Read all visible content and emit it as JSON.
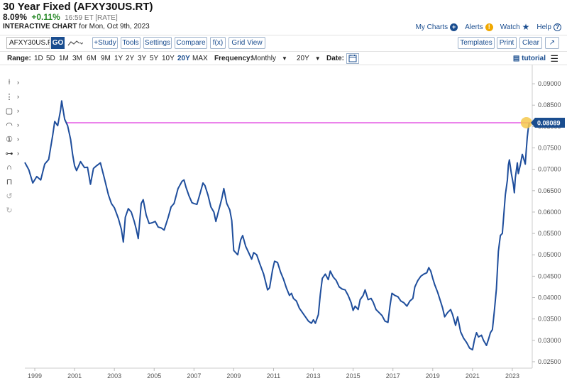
{
  "header": {
    "title": "30 Year Fixed (AFXY30US.RT)",
    "price": "8.09%",
    "change": "+0.11%",
    "timestamp": "16:59 ET [RATE]",
    "subtitle_bold": "INTERACTIVE CHART",
    "subtitle_rest": " for Mon, Oct 9th, 2023"
  },
  "toplinks": {
    "my_charts": "My Charts",
    "alerts": "Alerts",
    "watch": "Watch",
    "help": "Help"
  },
  "toolbar": {
    "symbol_value": "AFXY30US.R",
    "go_label": "GO",
    "study_label": "+Study",
    "tools_label": "Tools",
    "settings_label": "Settings",
    "compare_label": "Compare",
    "fx_label": "f(x)",
    "grid_view_label": "Grid View",
    "templates_label": "Templates",
    "print_label": "Print",
    "clear_label": "Clear",
    "expand_label": "↗"
  },
  "range_bar": {
    "range_label": "Range:",
    "ranges": [
      "1D",
      "5D",
      "1M",
      "3M",
      "6M",
      "9M",
      "1Y",
      "2Y",
      "3Y",
      "5Y",
      "10Y",
      "20Y",
      "MAX"
    ],
    "active_range": "20Y",
    "frequency_label": "Frequency:",
    "frequency_value": "Monthly",
    "period_value": "20Y",
    "date_label": "Date:",
    "tutorial_label": "tutorial"
  },
  "colors": {
    "line": "#1f4e9c",
    "reference_line": "#e040e0",
    "accent": "#1a4d8f",
    "marker": "#f5c84c"
  },
  "chart_data": {
    "type": "line",
    "title": "30 Year Fixed (AFXY30US.RT)",
    "xlabel": "",
    "ylabel": "",
    "xlim": [
      1998.5,
      2024.0
    ],
    "ylim": [
      0.0235,
      0.0935
    ],
    "x_ticks": [
      "1999",
      "2001",
      "2003",
      "2005",
      "2007",
      "2009",
      "2011",
      "2013",
      "2015",
      "2017",
      "2019",
      "2021",
      "2023"
    ],
    "y_ticks": [
      "0.02500",
      "0.03000",
      "0.03500",
      "0.04000",
      "0.04500",
      "0.05000",
      "0.05500",
      "0.06000",
      "0.06500",
      "0.07000",
      "0.07500",
      "0.08000",
      "0.08500",
      "0.09000"
    ],
    "reference_line": 0.08089,
    "last_value_label": "0.08089",
    "grid": false,
    "series": [
      {
        "values": [
          [
            1998.5,
            0.0716
          ],
          [
            1998.7,
            0.0699
          ],
          [
            1998.9,
            0.0668
          ],
          [
            1999.1,
            0.0683
          ],
          [
            1999.3,
            0.0675
          ],
          [
            1999.5,
            0.0712
          ],
          [
            1999.7,
            0.0723
          ],
          [
            1999.9,
            0.078
          ],
          [
            2000.0,
            0.0812
          ],
          [
            2000.15,
            0.0802
          ],
          [
            2000.3,
            0.084
          ],
          [
            2000.35,
            0.086
          ],
          [
            2000.5,
            0.0817
          ],
          [
            2000.65,
            0.0802
          ],
          [
            2000.8,
            0.077
          ],
          [
            2000.9,
            0.0735
          ],
          [
            2001.0,
            0.0708
          ],
          [
            2001.1,
            0.0697
          ],
          [
            2001.3,
            0.0718
          ],
          [
            2001.5,
            0.0704
          ],
          [
            2001.65,
            0.0705
          ],
          [
            2001.8,
            0.0665
          ],
          [
            2001.95,
            0.0702
          ],
          [
            2002.1,
            0.0708
          ],
          [
            2002.3,
            0.0715
          ],
          [
            2002.5,
            0.0678
          ],
          [
            2002.7,
            0.064
          ],
          [
            2002.85,
            0.062
          ],
          [
            2003.0,
            0.061
          ],
          [
            2003.2,
            0.0585
          ],
          [
            2003.35,
            0.056
          ],
          [
            2003.45,
            0.053
          ],
          [
            2003.55,
            0.0588
          ],
          [
            2003.7,
            0.0608
          ],
          [
            2003.85,
            0.06
          ],
          [
            2004.0,
            0.0578
          ],
          [
            2004.1,
            0.056
          ],
          [
            2004.2,
            0.0538
          ],
          [
            2004.35,
            0.062
          ],
          [
            2004.45,
            0.0629
          ],
          [
            2004.6,
            0.0593
          ],
          [
            2004.75,
            0.0573
          ],
          [
            2004.9,
            0.0575
          ],
          [
            2005.05,
            0.0578
          ],
          [
            2005.2,
            0.0565
          ],
          [
            2005.35,
            0.0563
          ],
          [
            2005.5,
            0.0558
          ],
          [
            2005.7,
            0.0587
          ],
          [
            2005.85,
            0.0612
          ],
          [
            2006.0,
            0.062
          ],
          [
            2006.2,
            0.0655
          ],
          [
            2006.4,
            0.0672
          ],
          [
            2006.5,
            0.0675
          ],
          [
            2006.6,
            0.0658
          ],
          [
            2006.75,
            0.0638
          ],
          [
            2006.9,
            0.0622
          ],
          [
            2007.0,
            0.062
          ],
          [
            2007.15,
            0.0618
          ],
          [
            2007.3,
            0.0642
          ],
          [
            2007.45,
            0.0668
          ],
          [
            2007.55,
            0.0662
          ],
          [
            2007.7,
            0.064
          ],
          [
            2007.85,
            0.0612
          ],
          [
            2008.0,
            0.06
          ],
          [
            2008.1,
            0.0578
          ],
          [
            2008.25,
            0.0605
          ],
          [
            2008.4,
            0.0632
          ],
          [
            2008.5,
            0.0655
          ],
          [
            2008.65,
            0.062
          ],
          [
            2008.8,
            0.0605
          ],
          [
            2008.9,
            0.058
          ],
          [
            2009.0,
            0.051
          ],
          [
            2009.1,
            0.0505
          ],
          [
            2009.2,
            0.05
          ],
          [
            2009.35,
            0.0535
          ],
          [
            2009.45,
            0.0545
          ],
          [
            2009.6,
            0.052
          ],
          [
            2009.75,
            0.0505
          ],
          [
            2009.9,
            0.049
          ],
          [
            2010.0,
            0.0505
          ],
          [
            2010.15,
            0.05
          ],
          [
            2010.3,
            0.048
          ],
          [
            2010.5,
            0.0455
          ],
          [
            2010.7,
            0.0418
          ],
          [
            2010.8,
            0.0423
          ],
          [
            2010.95,
            0.0465
          ],
          [
            2011.05,
            0.0485
          ],
          [
            2011.2,
            0.0482
          ],
          [
            2011.35,
            0.046
          ],
          [
            2011.5,
            0.0443
          ],
          [
            2011.65,
            0.0422
          ],
          [
            2011.8,
            0.0405
          ],
          [
            2011.9,
            0.041
          ],
          [
            2012.0,
            0.0398
          ],
          [
            2012.15,
            0.0392
          ],
          [
            2012.3,
            0.0375
          ],
          [
            2012.45,
            0.0365
          ],
          [
            2012.6,
            0.0355
          ],
          [
            2012.75,
            0.0345
          ],
          [
            2012.9,
            0.034
          ],
          [
            2013.0,
            0.0348
          ],
          [
            2013.1,
            0.034
          ],
          [
            2013.25,
            0.036
          ],
          [
            2013.35,
            0.0408
          ],
          [
            2013.45,
            0.0445
          ],
          [
            2013.6,
            0.0455
          ],
          [
            2013.75,
            0.0442
          ],
          [
            2013.85,
            0.0462
          ],
          [
            2014.0,
            0.0448
          ],
          [
            2014.15,
            0.044
          ],
          [
            2014.3,
            0.0425
          ],
          [
            2014.45,
            0.042
          ],
          [
            2014.6,
            0.0418
          ],
          [
            2014.75,
            0.0405
          ],
          [
            2014.9,
            0.0388
          ],
          [
            2015.0,
            0.037
          ],
          [
            2015.1,
            0.038
          ],
          [
            2015.25,
            0.0372
          ],
          [
            2015.35,
            0.0395
          ],
          [
            2015.5,
            0.0405
          ],
          [
            2015.6,
            0.0418
          ],
          [
            2015.75,
            0.0395
          ],
          [
            2015.9,
            0.0398
          ],
          [
            2016.0,
            0.039
          ],
          [
            2016.15,
            0.0372
          ],
          [
            2016.3,
            0.0365
          ],
          [
            2016.45,
            0.0358
          ],
          [
            2016.6,
            0.0345
          ],
          [
            2016.75,
            0.0342
          ],
          [
            2016.85,
            0.038
          ],
          [
            2016.95,
            0.041
          ],
          [
            2017.1,
            0.0405
          ],
          [
            2017.25,
            0.0402
          ],
          [
            2017.4,
            0.0392
          ],
          [
            2017.55,
            0.0388
          ],
          [
            2017.7,
            0.038
          ],
          [
            2017.85,
            0.0392
          ],
          [
            2018.0,
            0.0398
          ],
          [
            2018.1,
            0.0425
          ],
          [
            2018.25,
            0.044
          ],
          [
            2018.4,
            0.045
          ],
          [
            2018.55,
            0.0455
          ],
          [
            2018.7,
            0.0458
          ],
          [
            2018.8,
            0.047
          ],
          [
            2018.9,
            0.0462
          ],
          [
            2019.0,
            0.0445
          ],
          [
            2019.1,
            0.043
          ],
          [
            2019.25,
            0.0412
          ],
          [
            2019.4,
            0.039
          ],
          [
            2019.5,
            0.0375
          ],
          [
            2019.6,
            0.0355
          ],
          [
            2019.75,
            0.0365
          ],
          [
            2019.9,
            0.0372
          ],
          [
            2020.0,
            0.036
          ],
          [
            2020.15,
            0.0335
          ],
          [
            2020.25,
            0.0355
          ],
          [
            2020.4,
            0.032
          ],
          [
            2020.55,
            0.0305
          ],
          [
            2020.7,
            0.0295
          ],
          [
            2020.85,
            0.0282
          ],
          [
            2021.0,
            0.0278
          ],
          [
            2021.1,
            0.0302
          ],
          [
            2021.2,
            0.0318
          ],
          [
            2021.3,
            0.0308
          ],
          [
            2021.45,
            0.0312
          ],
          [
            2021.55,
            0.03
          ],
          [
            2021.7,
            0.0288
          ],
          [
            2021.8,
            0.0302
          ],
          [
            2021.9,
            0.0318
          ],
          [
            2022.0,
            0.0325
          ],
          [
            2022.1,
            0.037
          ],
          [
            2022.2,
            0.042
          ],
          [
            2022.3,
            0.0508
          ],
          [
            2022.4,
            0.0545
          ],
          [
            2022.5,
            0.055
          ],
          [
            2022.55,
            0.058
          ],
          [
            2022.65,
            0.064
          ],
          [
            2022.75,
            0.0675
          ],
          [
            2022.8,
            0.071
          ],
          [
            2022.85,
            0.0722
          ],
          [
            2022.95,
            0.069
          ],
          [
            2023.05,
            0.0665
          ],
          [
            2023.1,
            0.0645
          ],
          [
            2023.15,
            0.068
          ],
          [
            2023.25,
            0.0715
          ],
          [
            2023.3,
            0.069
          ],
          [
            2023.4,
            0.071
          ],
          [
            2023.5,
            0.0735
          ],
          [
            2023.6,
            0.072
          ],
          [
            2023.65,
            0.0712
          ],
          [
            2023.7,
            0.0745
          ],
          [
            2023.75,
            0.0775
          ],
          [
            2023.8,
            0.0795
          ],
          [
            2023.85,
            0.0809
          ]
        ]
      }
    ]
  }
}
